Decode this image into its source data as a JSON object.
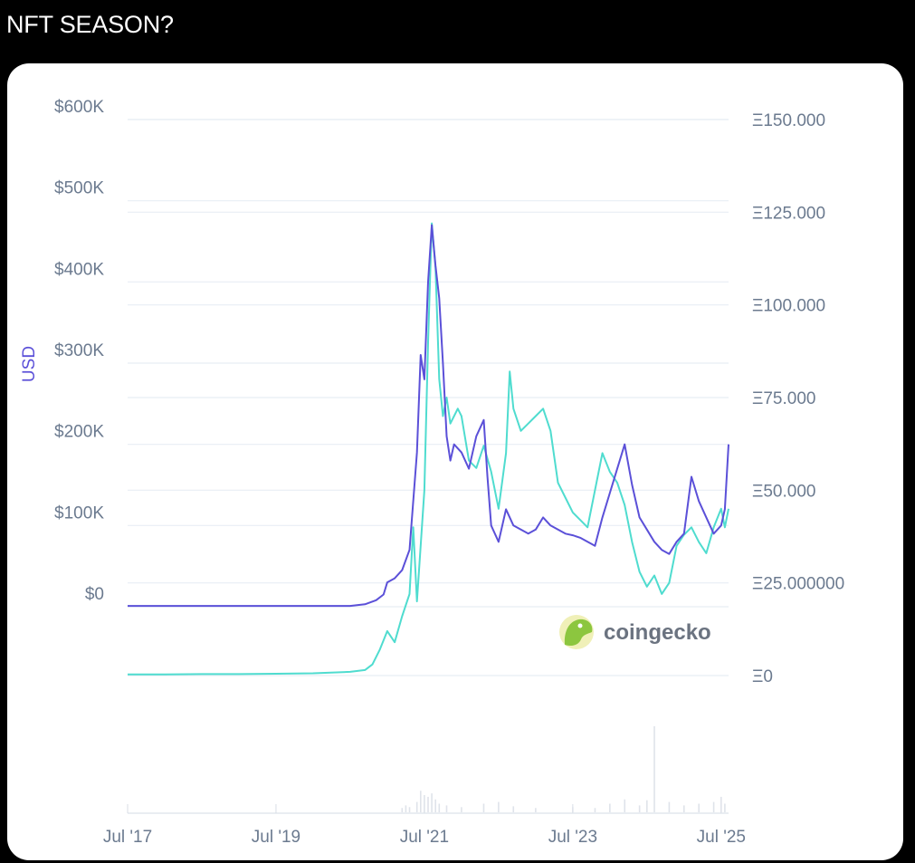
{
  "post": {
    "title": "NFT SEASON?"
  },
  "colors": {
    "usd_series": "#5b50d8",
    "eth_series": "#4fdccf",
    "gridline": "#e8eef4",
    "tick_text": "#6b7a8f",
    "volume_bars": "#dfe3ea",
    "usd_axis_label": "#5b50d8"
  },
  "brand": {
    "name": "coingecko",
    "icon": "gecko-logo-icon"
  },
  "chart_data": {
    "type": "line",
    "left_axis": {
      "label": "USD",
      "ticks": [
        {
          "value": 600000,
          "label": "$600K"
        },
        {
          "value": 500000,
          "label": "$500K"
        },
        {
          "value": 400000,
          "label": "$400K"
        },
        {
          "value": 300000,
          "label": "$300K"
        },
        {
          "value": 200000,
          "label": "$200K"
        },
        {
          "value": 100000,
          "label": "$100K"
        },
        {
          "value": 0,
          "label": "$0"
        }
      ],
      "range": [
        0,
        600000
      ]
    },
    "right_axis": {
      "ticks": [
        {
          "value": 150,
          "label": "Ξ150.000"
        },
        {
          "value": 125,
          "label": "Ξ125.000"
        },
        {
          "value": 100,
          "label": "Ξ100.000"
        },
        {
          "value": 75,
          "label": "Ξ75.000"
        },
        {
          "value": 50,
          "label": "Ξ50.000"
        },
        {
          "value": 25,
          "label": "Ξ25.000000"
        },
        {
          "value": 0,
          "label": "Ξ0"
        }
      ],
      "range": [
        0,
        150
      ]
    },
    "x_axis": {
      "range": [
        2017.5,
        2025.6
      ],
      "ticks": [
        {
          "value": 2017.5,
          "label": "Jul '17"
        },
        {
          "value": 2019.5,
          "label": "Jul '19"
        },
        {
          "value": 2021.5,
          "label": "Jul '21"
        },
        {
          "value": 2023.5,
          "label": "Jul '23"
        },
        {
          "value": 2025.5,
          "label": "Jul '25"
        }
      ]
    },
    "grid": true,
    "legend": "none",
    "series": [
      {
        "axis": "left",
        "x": [
          2017.5,
          2018.0,
          2018.5,
          2019.0,
          2019.5,
          2020.0,
          2020.5,
          2020.7,
          2020.85,
          2020.95,
          2021.0,
          2021.1,
          2021.2,
          2021.3,
          2021.4,
          2021.45,
          2021.5,
          2021.55,
          2021.6,
          2021.65,
          2021.7,
          2021.75,
          2021.8,
          2021.85,
          2021.9,
          2022.0,
          2022.1,
          2022.2,
          2022.3,
          2022.35,
          2022.4,
          2022.5,
          2022.6,
          2022.7,
          2022.8,
          2022.9,
          2023.0,
          2023.1,
          2023.2,
          2023.3,
          2023.4,
          2023.5,
          2023.6,
          2023.7,
          2023.8,
          2023.9,
          2024.0,
          2024.1,
          2024.2,
          2024.3,
          2024.4,
          2024.5,
          2024.6,
          2024.7,
          2024.8,
          2024.9,
          2025.0,
          2025.1,
          2025.2,
          2025.3,
          2025.4,
          2025.5,
          2025.55,
          2025.6
        ],
        "y": [
          1000,
          1000,
          1000,
          1000,
          1000,
          1000,
          1000,
          3000,
          8000,
          15000,
          30000,
          35000,
          45000,
          70000,
          190000,
          310000,
          280000,
          400000,
          470000,
          420000,
          380000,
          300000,
          210000,
          180000,
          200000,
          190000,
          170000,
          210000,
          230000,
          160000,
          100000,
          80000,
          120000,
          100000,
          95000,
          90000,
          95000,
          110000,
          100000,
          95000,
          90000,
          88000,
          85000,
          80000,
          75000,
          110000,
          140000,
          170000,
          200000,
          150000,
          110000,
          95000,
          80000,
          70000,
          65000,
          80000,
          90000,
          160000,
          130000,
          110000,
          90000,
          100000,
          120000,
          200000
        ]
      },
      {
        "axis": "right",
        "x": [
          2017.5,
          2018.0,
          2018.5,
          2019.0,
          2019.5,
          2020.0,
          2020.5,
          2020.7,
          2020.8,
          2020.9,
          2021.0,
          2021.1,
          2021.2,
          2021.3,
          2021.35,
          2021.4,
          2021.45,
          2021.5,
          2021.55,
          2021.6,
          2021.65,
          2021.7,
          2021.75,
          2021.8,
          2021.85,
          2021.9,
          2021.95,
          2022.0,
          2022.1,
          2022.2,
          2022.3,
          2022.4,
          2022.5,
          2022.6,
          2022.65,
          2022.7,
          2022.8,
          2022.9,
          2023.0,
          2023.1,
          2023.2,
          2023.3,
          2023.4,
          2023.5,
          2023.6,
          2023.7,
          2023.8,
          2023.9,
          2024.0,
          2024.1,
          2024.2,
          2024.3,
          2024.4,
          2024.5,
          2024.6,
          2024.7,
          2024.8,
          2024.9,
          2025.0,
          2025.1,
          2025.2,
          2025.3,
          2025.4,
          2025.5,
          2025.55,
          2025.6
        ],
        "y": [
          0.3,
          0.3,
          0.4,
          0.4,
          0.5,
          0.6,
          1.0,
          1.5,
          3.0,
          7.0,
          12.0,
          9.0,
          16.0,
          22.0,
          40.0,
          20.0,
          35.0,
          50.0,
          90.0,
          122.0,
          110.0,
          80.0,
          70.0,
          75.0,
          68.0,
          70.0,
          72.0,
          70.0,
          58.0,
          56.0,
          62.0,
          55.0,
          45.0,
          60.0,
          82.0,
          72.0,
          66.0,
          68.0,
          70.0,
          72.0,
          66.0,
          52.0,
          48.0,
          44.0,
          42.0,
          40.0,
          50.0,
          60.0,
          55.0,
          52.0,
          46.0,
          36.0,
          28.0,
          24.0,
          27.0,
          22.0,
          25.0,
          35.0,
          38.0,
          40.0,
          36.0,
          33.0,
          40.0,
          45.0,
          40.0,
          45.0
        ]
      }
    ],
    "volume": {
      "x": [
        2021.2,
        2021.25,
        2021.3,
        2021.4,
        2021.45,
        2021.5,
        2021.55,
        2021.6,
        2021.65,
        2021.7,
        2021.8,
        2022.0,
        2022.3,
        2022.5,
        2022.7,
        2023.0,
        2023.5,
        2023.8,
        2024.0,
        2024.2,
        2024.4,
        2024.5,
        2024.6,
        2024.8,
        2025.0,
        2025.2,
        2025.4,
        2025.5,
        2025.55
      ],
      "y": [
        0.05,
        0.08,
        0.06,
        0.12,
        0.25,
        0.2,
        0.18,
        0.22,
        0.15,
        0.1,
        0.08,
        0.06,
        0.1,
        0.12,
        0.07,
        0.05,
        0.06,
        0.05,
        0.1,
        0.15,
        0.08,
        0.14,
        1.0,
        0.12,
        0.08,
        0.1,
        0.12,
        0.18,
        0.1
      ]
    }
  }
}
